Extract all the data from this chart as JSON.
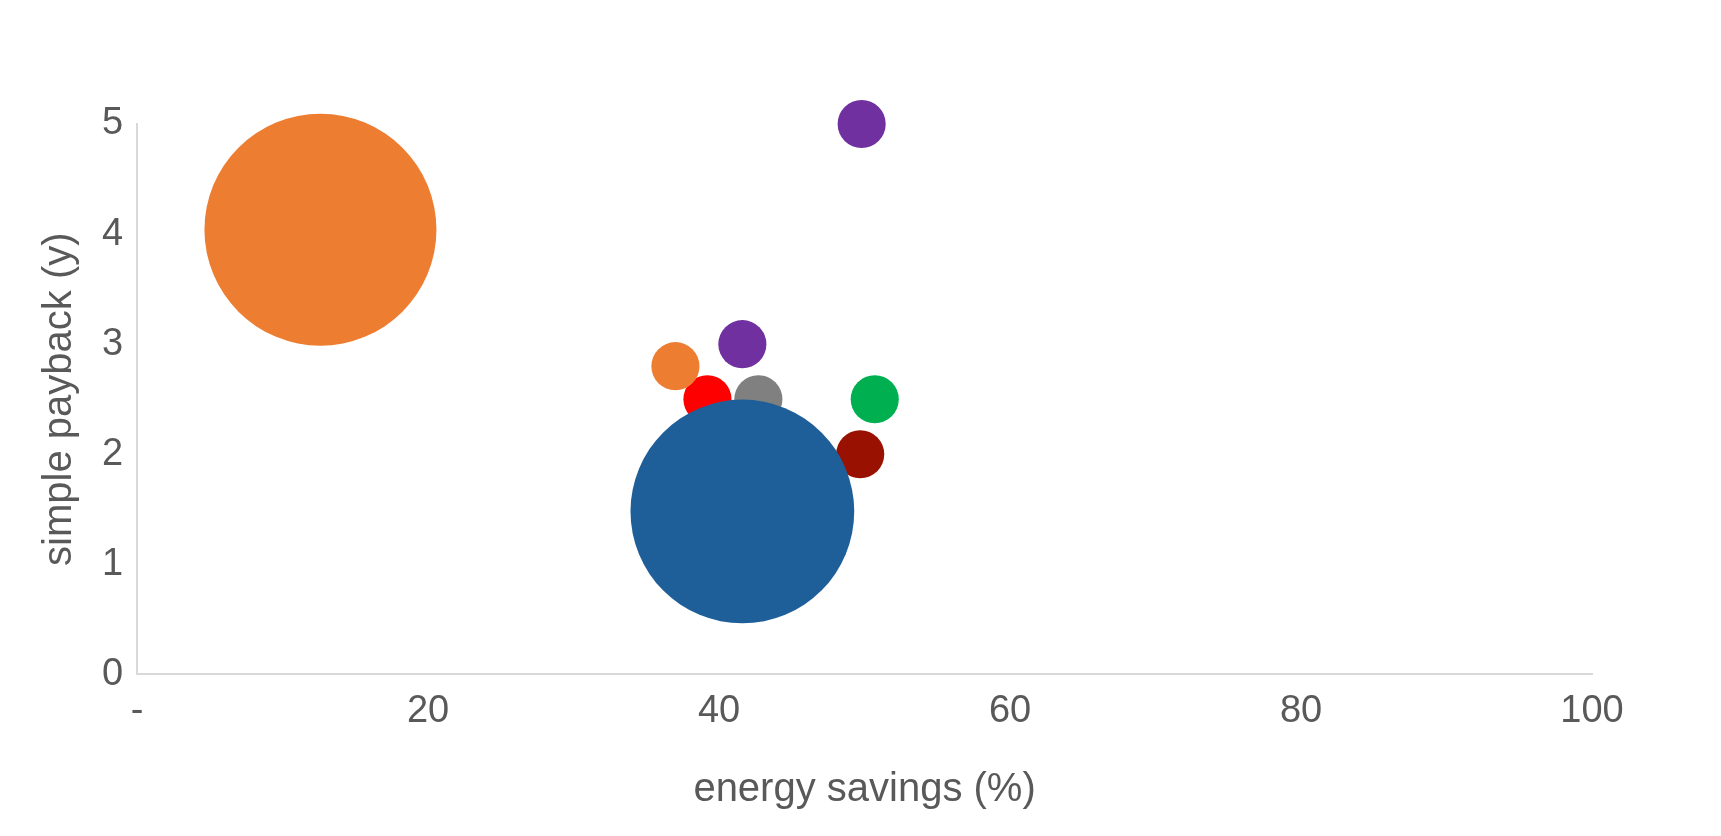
{
  "chart_data": {
    "type": "bubble",
    "xlabel": "energy savings (%)",
    "ylabel": "simple payback (y)",
    "xlim": [
      0,
      100
    ],
    "xticks": [
      {
        "value": 0,
        "label": "-"
      },
      20,
      40,
      60,
      80,
      100
    ],
    "ylim": [
      0,
      5
    ],
    "yticks": [
      0,
      1,
      2,
      3,
      4,
      5
    ],
    "grid": false,
    "legend": false,
    "series": [
      {
        "color": "#ed7d31",
        "x": [
          12.6
        ],
        "values": [
          4.04
        ],
        "sizes": [
          1
        ]
      },
      {
        "color": "#1f5f99",
        "x": [
          41.6
        ],
        "values": [
          1.48
        ],
        "sizes": [
          0.93
        ]
      },
      {
        "color": "#7030a0",
        "x": [
          49.8
        ],
        "values": [
          5.0
        ],
        "sizes": [
          0.043
        ]
      },
      {
        "color": "#7030a0",
        "x": [
          41.6
        ],
        "values": [
          3.0
        ],
        "sizes": [
          0.043
        ]
      },
      {
        "color": "#ed7d31",
        "x": [
          37.0
        ],
        "values": [
          2.8
        ],
        "sizes": [
          0.043
        ]
      },
      {
        "color": "#ff0000",
        "x": [
          39.2
        ],
        "values": [
          2.5
        ],
        "sizes": [
          0.043
        ]
      },
      {
        "color": "#808080",
        "x": [
          42.7
        ],
        "values": [
          2.5
        ],
        "sizes": [
          0.043
        ]
      },
      {
        "color": "#00b050",
        "x": [
          50.7
        ],
        "values": [
          2.5
        ],
        "sizes": [
          0.043
        ]
      },
      {
        "color": "#991100",
        "x": [
          49.7
        ],
        "values": [
          2.0
        ],
        "sizes": [
          0.043
        ]
      }
    ]
  }
}
